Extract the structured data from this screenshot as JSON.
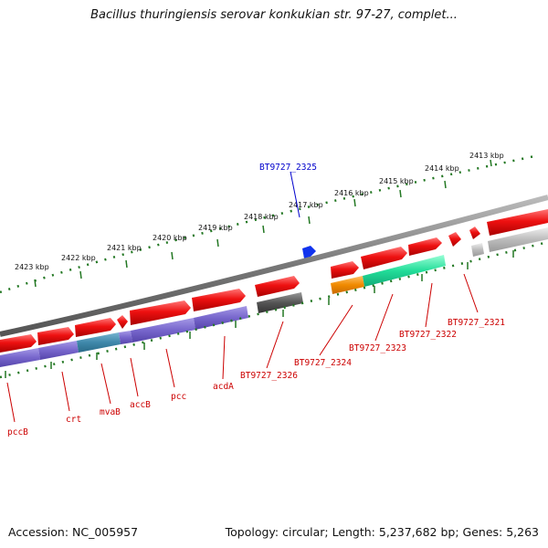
{
  "title": "Bacillus thuringiensis serovar konkukian str. 97-27, complet...",
  "footer": {
    "accession": "Accession: NC_005957",
    "topology": "Topology: circular; Length: 5,237,682 bp; Genes: 5,263"
  },
  "ruler_ticks": [
    "2413 kbp",
    "2414 kbp",
    "2415 kbp",
    "2416 kbp",
    "2417 kbp",
    "2418 kbp",
    "2419 kbp",
    "2420 kbp",
    "2421 kbp",
    "2422 kbp",
    "2423 kbp"
  ],
  "genes": [
    {
      "name": "BT9727_2321",
      "color": "#cc0000"
    },
    {
      "name": "BT9727_2322",
      "color": "#cc0000"
    },
    {
      "name": "BT9727_2323",
      "color": "#cc0000"
    },
    {
      "name": "BT9727_2324",
      "color": "#cc0000"
    },
    {
      "name": "BT9727_2325",
      "color": "#0000cc"
    },
    {
      "name": "BT9727_2326",
      "color": "#cc0000"
    },
    {
      "name": "acdA",
      "color": "#cc0000"
    },
    {
      "name": "pcc",
      "color": "#cc0000"
    },
    {
      "name": "accB",
      "color": "#cc0000"
    },
    {
      "name": "mvaB",
      "color": "#cc0000"
    },
    {
      "name": "crt",
      "color": "#cc0000"
    },
    {
      "name": "pccB",
      "color": "#cc0000"
    }
  ],
  "colors": {
    "cds_forward": "#ee1111",
    "cds_reverse_purple": "#7766cc",
    "cds_teal": "#3f88aa",
    "cds_gray": "#555555",
    "cds_orange": "#f08a00",
    "cds_green": "#22dd99",
    "cds_light_gray": "#bbbbbb",
    "blue_marker": "#1133ee",
    "ruler_green": "#227722",
    "backbone": "#888888"
  }
}
